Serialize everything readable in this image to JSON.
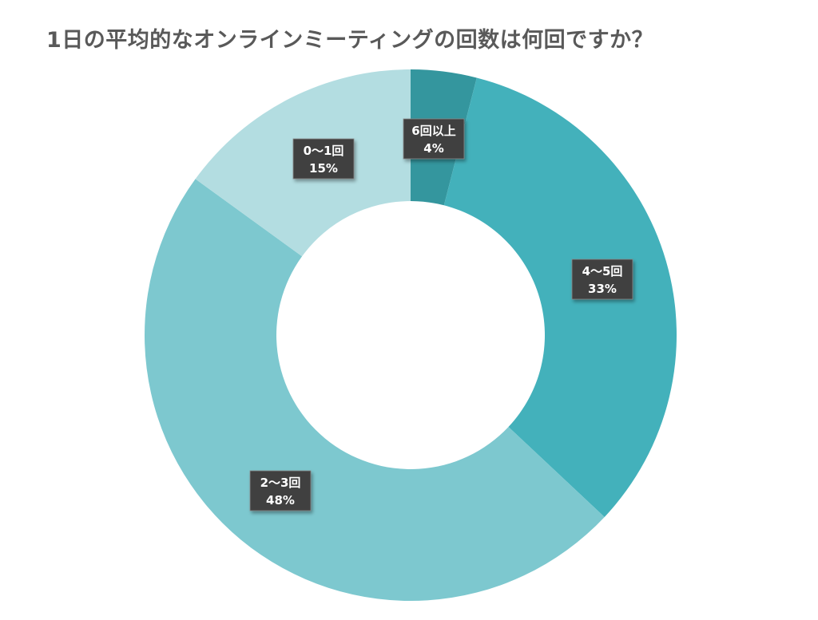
{
  "chart_data": {
    "type": "pie",
    "variant": "donut",
    "title": "1日の平均的なオンラインミーティングの回数は何回ですか？",
    "start_angle_deg": 0,
    "direction": "clockwise",
    "slices": [
      {
        "label": "6回以上",
        "value": 4,
        "display": "4%",
        "color": "#34969e"
      },
      {
        "label": "4～5回",
        "value": 33,
        "display": "33%",
        "color": "#43b1bb"
      },
      {
        "label": "2～3回",
        "value": 48,
        "display": "48%",
        "color": "#7dc8cf"
      },
      {
        "label": "0～1回",
        "value": 15,
        "display": "15%",
        "color": "#b3dde1"
      }
    ]
  }
}
